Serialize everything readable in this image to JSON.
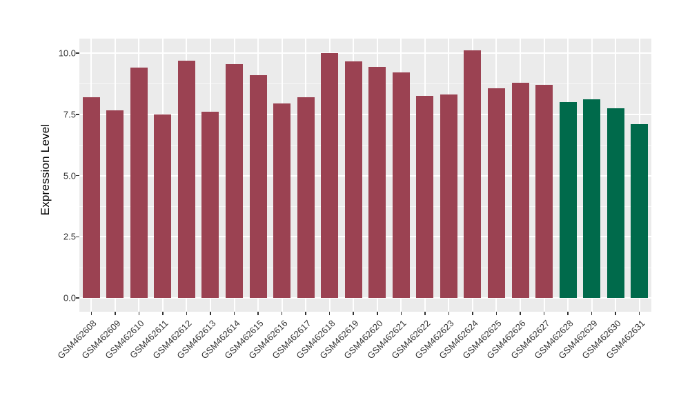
{
  "figure": {
    "background": "#ffffff"
  },
  "chart_data": {
    "type": "bar",
    "title": "",
    "xlabel": "",
    "ylabel": "Expression Level",
    "legend": "none",
    "grid": "major and minor horizontal white gridlines plus vertical white gridlines at each category, on gray panel",
    "panel_bg": "#ebebeb",
    "grid_color": "#ffffff",
    "axis_tick_color": "#333333",
    "axis_label_color": "#333333",
    "bar_color_main": "#9b4252",
    "bar_color_highlight": "#006a4b",
    "ylim": [
      0,
      10.6
    ],
    "yticks": [
      0.0,
      2.5,
      5.0,
      7.5,
      10.0
    ],
    "ytick_labels": [
      "0.0",
      "2.5",
      "5.0",
      "7.5",
      "10.0"
    ],
    "yticks_minor": [
      1.25,
      3.75,
      6.25,
      8.75
    ],
    "categories": [
      "GSM462608",
      "GSM462609",
      "GSM462610",
      "GSM462611",
      "GSM462612",
      "GSM462613",
      "GSM462614",
      "GSM462615",
      "GSM462616",
      "GSM462617",
      "GSM462618",
      "GSM462619",
      "GSM462620",
      "GSM462621",
      "GSM462622",
      "GSM462623",
      "GSM462624",
      "GSM462625",
      "GSM462626",
      "GSM462627",
      "GSM462628",
      "GSM462629",
      "GSM462630",
      "GSM462631"
    ],
    "values": [
      8.2,
      7.65,
      9.4,
      7.5,
      9.7,
      7.6,
      9.55,
      9.1,
      7.95,
      8.2,
      10.0,
      9.65,
      9.45,
      9.2,
      8.25,
      8.3,
      10.1,
      8.55,
      8.8,
      8.7,
      8.0,
      8.1,
      7.75,
      7.1
    ],
    "colors": [
      "#9b4252",
      "#9b4252",
      "#9b4252",
      "#9b4252",
      "#9b4252",
      "#9b4252",
      "#9b4252",
      "#9b4252",
      "#9b4252",
      "#9b4252",
      "#9b4252",
      "#9b4252",
      "#9b4252",
      "#9b4252",
      "#9b4252",
      "#9b4252",
      "#9b4252",
      "#9b4252",
      "#9b4252",
      "#9b4252",
      "#006a4b",
      "#006a4b",
      "#006a4b",
      "#006a4b"
    ]
  }
}
